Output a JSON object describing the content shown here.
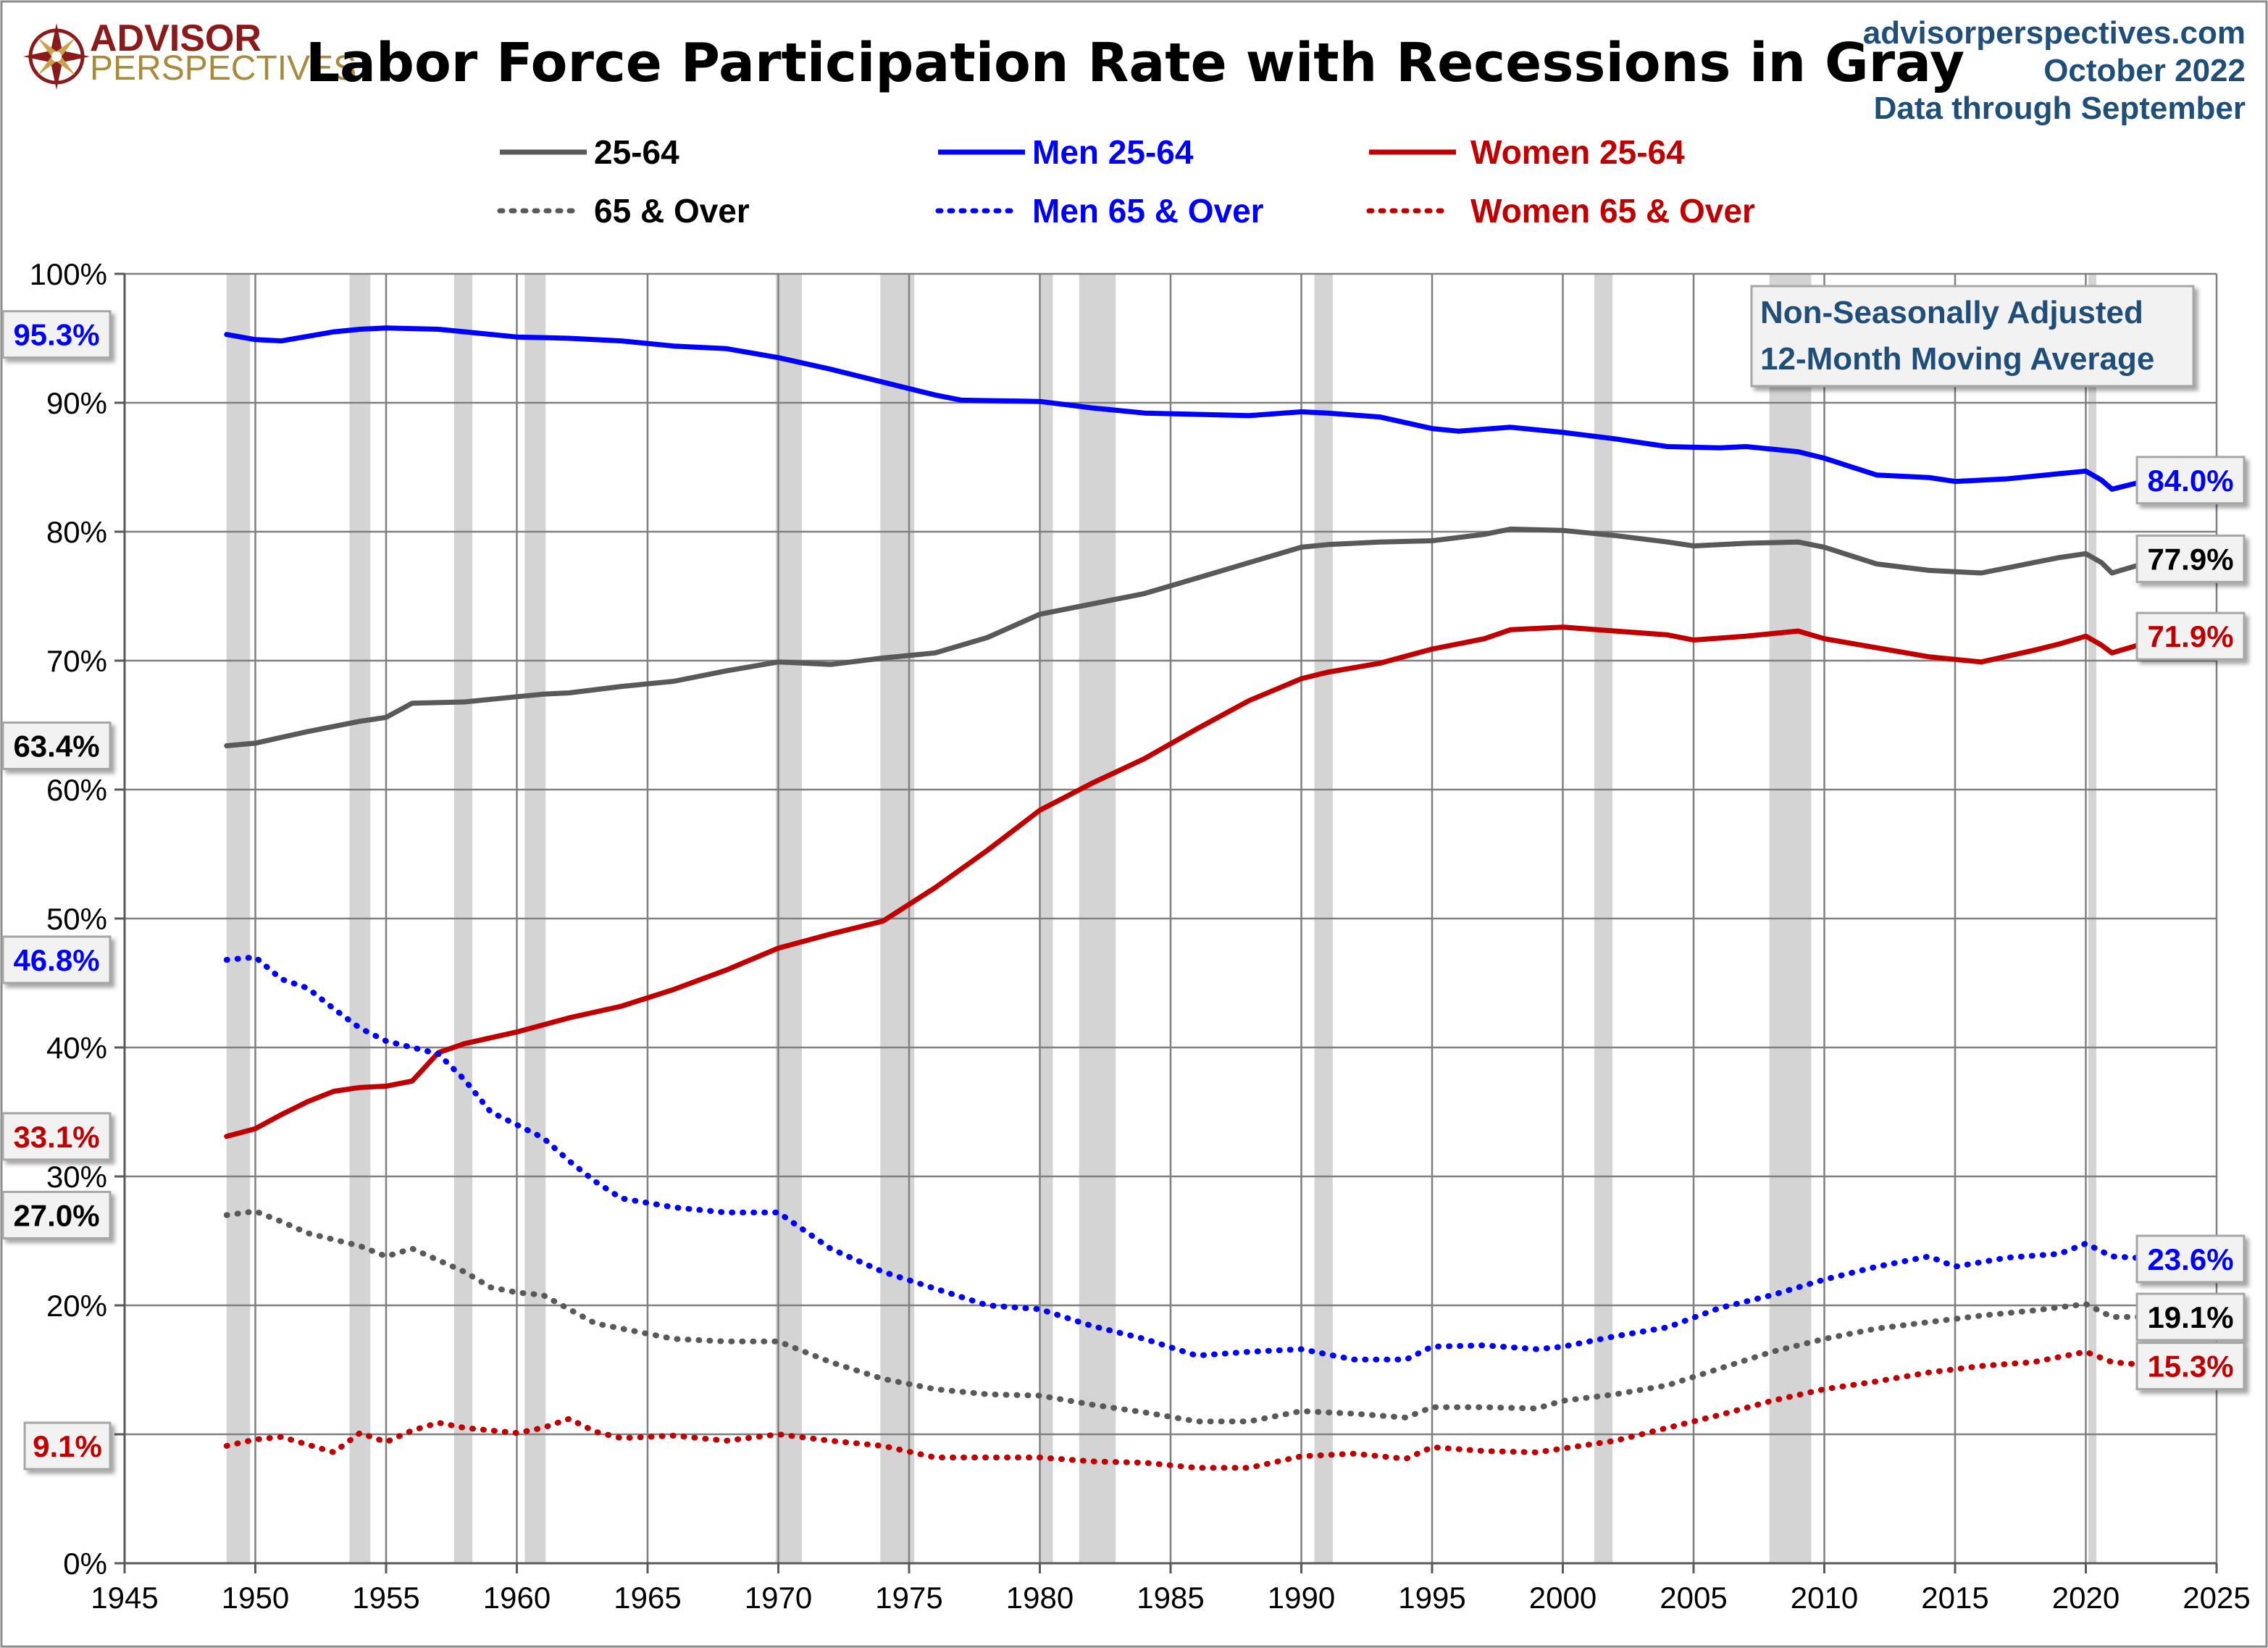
{
  "logo": {
    "line1": "ADVISOR",
    "line2": "PERSPECTIVES"
  },
  "header": {
    "title": "Labor Force Participation Rate with Recessions in Gray",
    "source_lines": [
      "advisorperspectives.com",
      "October 2022",
      "Data through September"
    ]
  },
  "note_lines": [
    "Non-Seasonally Adjusted",
    "12-Month Moving Average"
  ],
  "colors": {
    "total": "#595959",
    "men": "#0000ff",
    "women": "#c00000",
    "recession": "#d4d4d4",
    "grid": "#7f7f7f",
    "source": "#1f4e79",
    "note": "#1f4e79"
  },
  "chart_data": {
    "type": "line",
    "title": "Labor Force Participation Rate with Recessions in Gray",
    "xlabel": "",
    "ylabel": "",
    "xlim": [
      1945,
      2025
    ],
    "ylim": [
      0,
      100
    ],
    "x_ticks": [
      1945,
      1950,
      1955,
      1960,
      1965,
      1970,
      1975,
      1980,
      1985,
      1990,
      1995,
      2000,
      2005,
      2010,
      2015,
      2020,
      2025
    ],
    "y_ticks": [
      0,
      10,
      20,
      30,
      40,
      50,
      60,
      70,
      80,
      90,
      100
    ],
    "y_tick_labels": [
      "0%",
      "10%",
      "20%",
      "30%",
      "40%",
      "50%",
      "60%",
      "70%",
      "80%",
      "90%",
      "100%"
    ],
    "grid": true,
    "legend_position": "top",
    "recessions": [
      [
        1948.9,
        1949.8
      ],
      [
        1953.6,
        1954.4
      ],
      [
        1957.6,
        1958.3
      ],
      [
        1960.3,
        1961.1
      ],
      [
        1969.9,
        1970.9
      ],
      [
        1973.9,
        1975.2
      ],
      [
        1980.0,
        1980.5
      ],
      [
        1981.5,
        1982.9
      ],
      [
        1990.5,
        1991.2
      ],
      [
        2001.2,
        2001.9
      ],
      [
        2007.9,
        2009.5
      ],
      [
        2020.1,
        2020.4
      ]
    ],
    "series": [
      {
        "name": "25-64",
        "color": "#595959",
        "dash": "solid",
        "start_label": "63.4%",
        "end_label": "77.9%",
        "points": [
          [
            1948.9,
            63.4
          ],
          [
            1950,
            63.6
          ],
          [
            1952,
            64.5
          ],
          [
            1954,
            65.3
          ],
          [
            1955,
            65.6
          ],
          [
            1956,
            66.7
          ],
          [
            1958,
            66.8
          ],
          [
            1960,
            67.2
          ],
          [
            1961,
            67.4
          ],
          [
            1962,
            67.5
          ],
          [
            1964,
            68.0
          ],
          [
            1966,
            68.4
          ],
          [
            1968,
            69.2
          ],
          [
            1970,
            69.9
          ],
          [
            1972,
            69.7
          ],
          [
            1974,
            70.2
          ],
          [
            1976,
            70.6
          ],
          [
            1978,
            71.8
          ],
          [
            1980,
            73.6
          ],
          [
            1982,
            74.4
          ],
          [
            1984,
            75.2
          ],
          [
            1986,
            76.4
          ],
          [
            1988,
            77.6
          ],
          [
            1990,
            78.8
          ],
          [
            1991,
            79.0
          ],
          [
            1993,
            79.2
          ],
          [
            1995,
            79.3
          ],
          [
            1997,
            79.8
          ],
          [
            1998,
            80.2
          ],
          [
            2000,
            80.1
          ],
          [
            2002,
            79.7
          ],
          [
            2004,
            79.2
          ],
          [
            2005,
            78.9
          ],
          [
            2007,
            79.1
          ],
          [
            2009,
            79.2
          ],
          [
            2010,
            78.8
          ],
          [
            2012,
            77.5
          ],
          [
            2014,
            77.0
          ],
          [
            2016,
            76.8
          ],
          [
            2018,
            77.6
          ],
          [
            2019,
            78.0
          ],
          [
            2020,
            78.3
          ],
          [
            2020.6,
            77.6
          ],
          [
            2021,
            76.8
          ],
          [
            2022,
            77.4
          ],
          [
            2022.7,
            77.9
          ]
        ]
      },
      {
        "name": "Men 25-64",
        "color": "#0000ff",
        "dash": "solid",
        "start_label": "95.3%",
        "end_label": "84.0%",
        "points": [
          [
            1948.9,
            95.3
          ],
          [
            1950,
            94.9
          ],
          [
            1951,
            94.8
          ],
          [
            1953,
            95.5
          ],
          [
            1954,
            95.7
          ],
          [
            1955,
            95.8
          ],
          [
            1957,
            95.7
          ],
          [
            1960,
            95.1
          ],
          [
            1962,
            95.0
          ],
          [
            1964,
            94.8
          ],
          [
            1966,
            94.4
          ],
          [
            1968,
            94.2
          ],
          [
            1970,
            93.5
          ],
          [
            1972,
            92.6
          ],
          [
            1974,
            91.6
          ],
          [
            1976,
            90.6
          ],
          [
            1977,
            90.2
          ],
          [
            1980,
            90.1
          ],
          [
            1982,
            89.6
          ],
          [
            1984,
            89.2
          ],
          [
            1986,
            89.1
          ],
          [
            1988,
            89.0
          ],
          [
            1990,
            89.3
          ],
          [
            1991,
            89.2
          ],
          [
            1993,
            88.9
          ],
          [
            1995,
            88.0
          ],
          [
            1996,
            87.8
          ],
          [
            1998,
            88.1
          ],
          [
            2000,
            87.7
          ],
          [
            2002,
            87.2
          ],
          [
            2004,
            86.6
          ],
          [
            2006,
            86.5
          ],
          [
            2007,
            86.6
          ],
          [
            2009,
            86.2
          ],
          [
            2010,
            85.7
          ],
          [
            2012,
            84.4
          ],
          [
            2014,
            84.2
          ],
          [
            2015,
            83.9
          ],
          [
            2017,
            84.1
          ],
          [
            2019,
            84.5
          ],
          [
            2020,
            84.7
          ],
          [
            2020.6,
            84.0
          ],
          [
            2021,
            83.3
          ],
          [
            2022,
            83.8
          ],
          [
            2022.7,
            84.0
          ]
        ]
      },
      {
        "name": "Women 25-64",
        "color": "#c00000",
        "dash": "solid",
        "start_label": "33.1%",
        "end_label": "71.9%",
        "points": [
          [
            1948.9,
            33.1
          ],
          [
            1950,
            33.7
          ],
          [
            1951,
            34.8
          ],
          [
            1952,
            35.8
          ],
          [
            1953,
            36.6
          ],
          [
            1954,
            36.9
          ],
          [
            1955,
            37.0
          ],
          [
            1956,
            37.4
          ],
          [
            1957,
            39.6
          ],
          [
            1958,
            40.3
          ],
          [
            1960,
            41.2
          ],
          [
            1962,
            42.3
          ],
          [
            1964,
            43.2
          ],
          [
            1966,
            44.5
          ],
          [
            1968,
            46.0
          ],
          [
            1970,
            47.7
          ],
          [
            1972,
            48.8
          ],
          [
            1974,
            49.8
          ],
          [
            1976,
            52.4
          ],
          [
            1978,
            55.3
          ],
          [
            1980,
            58.4
          ],
          [
            1982,
            60.5
          ],
          [
            1984,
            62.4
          ],
          [
            1986,
            64.7
          ],
          [
            1988,
            66.9
          ],
          [
            1990,
            68.6
          ],
          [
            1991,
            69.1
          ],
          [
            1993,
            69.8
          ],
          [
            1995,
            70.9
          ],
          [
            1997,
            71.7
          ],
          [
            1998,
            72.4
          ],
          [
            2000,
            72.6
          ],
          [
            2002,
            72.3
          ],
          [
            2004,
            72.0
          ],
          [
            2005,
            71.6
          ],
          [
            2007,
            71.9
          ],
          [
            2009,
            72.3
          ],
          [
            2010,
            71.7
          ],
          [
            2012,
            71.0
          ],
          [
            2014,
            70.3
          ],
          [
            2016,
            69.9
          ],
          [
            2018,
            70.8
          ],
          [
            2019,
            71.3
          ],
          [
            2020,
            71.9
          ],
          [
            2020.6,
            71.2
          ],
          [
            2021,
            70.6
          ],
          [
            2022,
            71.2
          ],
          [
            2022.7,
            71.9
          ]
        ]
      },
      {
        "name": "65 & Over",
        "color": "#595959",
        "dash": "dot",
        "start_label": "27.0%",
        "end_label": "19.1%",
        "points": [
          [
            1948.9,
            27.0
          ],
          [
            1950,
            27.3
          ],
          [
            1951,
            26.5
          ],
          [
            1952,
            25.6
          ],
          [
            1953,
            25.1
          ],
          [
            1954,
            24.6
          ],
          [
            1955,
            23.8
          ],
          [
            1956,
            24.4
          ],
          [
            1957,
            23.5
          ],
          [
            1958,
            22.6
          ],
          [
            1959,
            21.4
          ],
          [
            1960,
            21.0
          ],
          [
            1961,
            20.8
          ],
          [
            1962,
            19.7
          ],
          [
            1963,
            18.6
          ],
          [
            1964,
            18.2
          ],
          [
            1966,
            17.4
          ],
          [
            1968,
            17.2
          ],
          [
            1970,
            17.2
          ],
          [
            1972,
            15.6
          ],
          [
            1974,
            14.3
          ],
          [
            1976,
            13.5
          ],
          [
            1978,
            13.1
          ],
          [
            1980,
            13.0
          ],
          [
            1982,
            12.3
          ],
          [
            1984,
            11.7
          ],
          [
            1986,
            11.0
          ],
          [
            1988,
            11.0
          ],
          [
            1990,
            11.8
          ],
          [
            1992,
            11.6
          ],
          [
            1994,
            11.3
          ],
          [
            1995,
            12.1
          ],
          [
            1997,
            12.1
          ],
          [
            1999,
            12.0
          ],
          [
            2000,
            12.6
          ],
          [
            2002,
            13.1
          ],
          [
            2004,
            13.8
          ],
          [
            2006,
            15.1
          ],
          [
            2008,
            16.4
          ],
          [
            2010,
            17.4
          ],
          [
            2012,
            18.2
          ],
          [
            2014,
            18.7
          ],
          [
            2016,
            19.2
          ],
          [
            2018,
            19.6
          ],
          [
            2020,
            20.1
          ],
          [
            2021,
            19.1
          ],
          [
            2022.7,
            19.1
          ]
        ]
      },
      {
        "name": "Men 65 & Over",
        "color": "#0000ff",
        "dash": "dot",
        "start_label": "46.8%",
        "end_label": "23.6%",
        "points": [
          [
            1948.9,
            46.8
          ],
          [
            1950,
            47.0
          ],
          [
            1951,
            45.3
          ],
          [
            1952,
            44.6
          ],
          [
            1953,
            43.0
          ],
          [
            1954,
            41.5
          ],
          [
            1955,
            40.5
          ],
          [
            1956,
            40.0
          ],
          [
            1957,
            39.5
          ],
          [
            1958,
            37.5
          ],
          [
            1959,
            35.0
          ],
          [
            1960,
            34.0
          ],
          [
            1961,
            33.0
          ],
          [
            1962,
            31.2
          ],
          [
            1963,
            29.6
          ],
          [
            1964,
            28.3
          ],
          [
            1966,
            27.6
          ],
          [
            1968,
            27.2
          ],
          [
            1970,
            27.2
          ],
          [
            1972,
            24.4
          ],
          [
            1974,
            22.6
          ],
          [
            1976,
            21.3
          ],
          [
            1978,
            20.0
          ],
          [
            1980,
            19.7
          ],
          [
            1982,
            18.4
          ],
          [
            1984,
            17.4
          ],
          [
            1986,
            16.1
          ],
          [
            1988,
            16.4
          ],
          [
            1990,
            16.6
          ],
          [
            1992,
            15.8
          ],
          [
            1994,
            15.8
          ],
          [
            1995,
            16.8
          ],
          [
            1997,
            16.9
          ],
          [
            1999,
            16.6
          ],
          [
            2000,
            16.8
          ],
          [
            2002,
            17.6
          ],
          [
            2004,
            18.3
          ],
          [
            2006,
            19.8
          ],
          [
            2008,
            20.8
          ],
          [
            2010,
            22.0
          ],
          [
            2012,
            23.0
          ],
          [
            2014,
            23.8
          ],
          [
            2015,
            23.0
          ],
          [
            2017,
            23.7
          ],
          [
            2019,
            24.0
          ],
          [
            2020,
            24.8
          ],
          [
            2021,
            23.8
          ],
          [
            2022.7,
            23.6
          ]
        ]
      },
      {
        "name": "Women 65 & Over",
        "color": "#c00000",
        "dash": "dot",
        "start_label": "9.1%",
        "end_label": "15.3%",
        "points": [
          [
            1948.9,
            9.1
          ],
          [
            1950,
            9.6
          ],
          [
            1951,
            9.8
          ],
          [
            1952,
            9.2
          ],
          [
            1953,
            8.6
          ],
          [
            1954,
            10.1
          ],
          [
            1955,
            9.4
          ],
          [
            1956,
            10.3
          ],
          [
            1957,
            10.9
          ],
          [
            1958,
            10.5
          ],
          [
            1960,
            10.1
          ],
          [
            1961,
            10.5
          ],
          [
            1962,
            11.2
          ],
          [
            1963,
            10.2
          ],
          [
            1964,
            9.7
          ],
          [
            1966,
            9.9
          ],
          [
            1968,
            9.5
          ],
          [
            1970,
            10.0
          ],
          [
            1972,
            9.5
          ],
          [
            1974,
            9.1
          ],
          [
            1976,
            8.2
          ],
          [
            1978,
            8.2
          ],
          [
            1980,
            8.2
          ],
          [
            1982,
            7.9
          ],
          [
            1984,
            7.8
          ],
          [
            1986,
            7.4
          ],
          [
            1988,
            7.4
          ],
          [
            1990,
            8.3
          ],
          [
            1992,
            8.5
          ],
          [
            1994,
            8.1
          ],
          [
            1995,
            9.0
          ],
          [
            1997,
            8.7
          ],
          [
            1999,
            8.6
          ],
          [
            2000,
            8.9
          ],
          [
            2002,
            9.5
          ],
          [
            2004,
            10.5
          ],
          [
            2006,
            11.5
          ],
          [
            2008,
            12.6
          ],
          [
            2010,
            13.5
          ],
          [
            2012,
            14.1
          ],
          [
            2014,
            14.8
          ],
          [
            2016,
            15.3
          ],
          [
            2018,
            15.6
          ],
          [
            2020,
            16.4
          ],
          [
            2021,
            15.6
          ],
          [
            2022.7,
            15.3
          ]
        ]
      }
    ]
  }
}
